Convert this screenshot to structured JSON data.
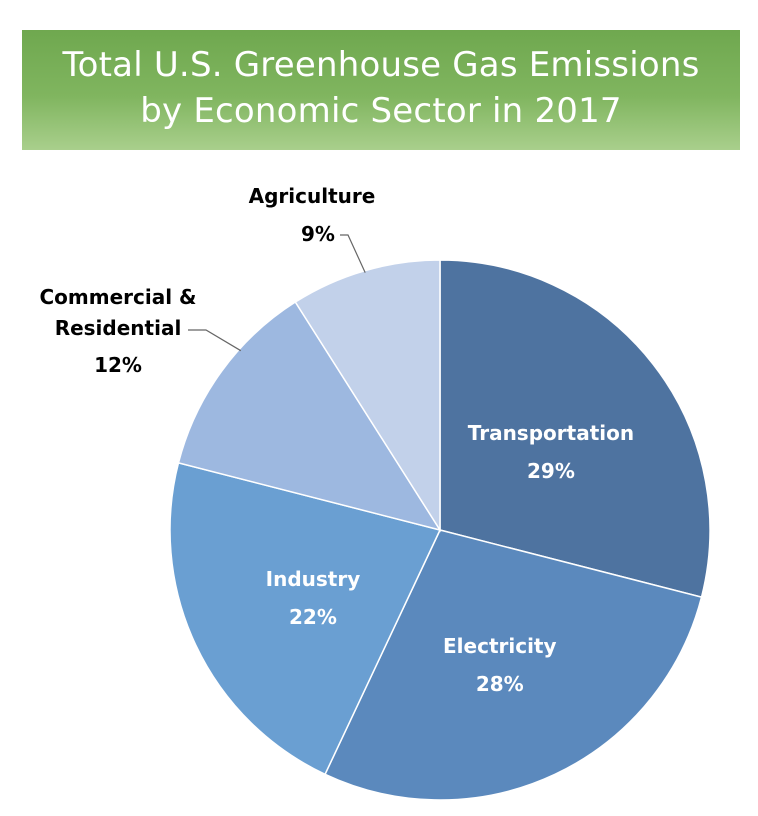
{
  "title": {
    "line1": "Total U.S. Greenhouse Gas Emissions",
    "line2": "by Economic Sector in 2017"
  },
  "chart_data": {
    "type": "pie",
    "title": "Total U.S. Greenhouse Gas Emissions by Economic Sector in 2017",
    "unit": "%",
    "slices": [
      {
        "name": "Transportation",
        "value": 29,
        "label": "29%",
        "color": "#4e73a0",
        "label_position": "inside"
      },
      {
        "name": "Electricity",
        "value": 28,
        "label": "28%",
        "color": "#5b89bd",
        "label_position": "inside"
      },
      {
        "name": "Industry",
        "value": 22,
        "label": "22%",
        "color": "#6a9fd2",
        "label_position": "inside"
      },
      {
        "name": "Commercial & Residential",
        "name_line1": "Commercial &",
        "name_line2": "Residential",
        "value": 12,
        "label": "12%",
        "color": "#9db8e0",
        "label_position": "outside-left"
      },
      {
        "name": "Agriculture",
        "value": 9,
        "label": "9%",
        "color": "#c2d1ea",
        "label_position": "outside-top"
      }
    ],
    "start_angle": "12 o'clock",
    "direction": "clockwise",
    "legend": "none",
    "inside_label_color": "#ffffff",
    "outside_label_color": "#000000"
  }
}
